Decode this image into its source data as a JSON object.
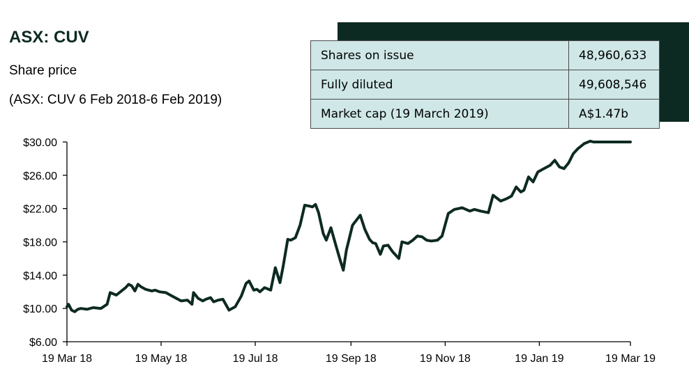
{
  "header": {
    "title": "ASX: CUV",
    "subtitle": "Share price",
    "date_range": "(ASX: CUV 6 Feb 2018-6 Feb 2019)"
  },
  "stats_table": {
    "rows": [
      {
        "label": "Shares on issue",
        "value": "48,960,633"
      },
      {
        "label": "Fully diluted",
        "value": "49,608,546"
      },
      {
        "label": "Market cap (19 March 2019)",
        "value": "A$1.47b"
      }
    ]
  },
  "colors": {
    "line": "#0d2a22",
    "dark_block": "#0d2a22",
    "table_background": "#cfe7e7"
  },
  "chart_data": {
    "type": "line",
    "title": "",
    "xlabel": "",
    "ylabel": "",
    "ylim": [
      6,
      30
    ],
    "yticks": [
      6,
      10,
      14,
      18,
      22,
      26,
      30
    ],
    "ytick_labels": [
      "$6.00",
      "$10.00",
      "$14.00",
      "$18.00",
      "$22.00",
      "$26.00",
      "$30.00"
    ],
    "xlim": [
      "2018-03-19",
      "2019-03-19"
    ],
    "xticks": [
      "2018-03-19",
      "2018-05-19",
      "2018-07-19",
      "2018-09-19",
      "2018-11-19",
      "2019-01-19",
      "2019-03-19"
    ],
    "xtick_labels": [
      "19 Mar 18",
      "19 May 18",
      "19 Jul 18",
      "19 Sep 18",
      "19 Nov 18",
      "19 Jan 19",
      "19 Mar 19"
    ],
    "grid": false,
    "legend": "none",
    "series": [
      {
        "x": [
          "2018-03-19",
          "2018-03-20",
          "2018-03-22",
          "2018-03-24",
          "2018-03-26",
          "2018-03-28",
          "2018-04-01",
          "2018-04-05",
          "2018-04-10",
          "2018-04-14",
          "2018-04-16",
          "2018-04-20",
          "2018-04-26",
          "2018-04-28",
          "2018-04-30",
          "2018-05-02",
          "2018-05-04",
          "2018-05-06",
          "2018-05-09",
          "2018-05-11",
          "2018-05-13",
          "2018-05-15",
          "2018-05-18",
          "2018-05-22",
          "2018-05-26",
          "2018-06-01",
          "2018-06-05",
          "2018-06-08",
          "2018-06-09",
          "2018-06-12",
          "2018-06-15",
          "2018-06-17",
          "2018-06-20",
          "2018-06-22",
          "2018-06-25",
          "2018-06-28",
          "2018-07-02",
          "2018-07-06",
          "2018-07-10",
          "2018-07-13",
          "2018-07-15",
          "2018-07-18",
          "2018-07-20",
          "2018-07-22",
          "2018-07-25",
          "2018-07-29",
          "2018-08-01",
          "2018-08-04",
          "2018-08-06",
          "2018-08-09",
          "2018-08-11",
          "2018-08-14",
          "2018-08-17",
          "2018-08-20",
          "2018-08-23",
          "2018-08-25",
          "2018-08-27",
          "2018-08-29",
          "2018-09-01",
          "2018-09-03",
          "2018-09-06",
          "2018-09-09",
          "2018-09-12",
          "2018-09-14",
          "2018-09-16",
          "2018-09-20",
          "2018-09-25",
          "2018-09-28",
          "2018-10-01",
          "2018-10-03",
          "2018-10-05",
          "2018-10-08",
          "2018-10-10",
          "2018-10-13",
          "2018-10-16",
          "2018-10-20",
          "2018-10-22",
          "2018-10-26",
          "2018-10-29",
          "2018-11-01",
          "2018-11-04",
          "2018-11-07",
          "2018-11-10",
          "2018-11-14",
          "2018-11-17",
          "2018-11-21",
          "2018-11-25",
          "2018-11-30",
          "2018-12-05",
          "2018-12-08",
          "2018-12-12",
          "2018-12-17",
          "2018-12-20",
          "2018-12-25",
          "2018-12-29",
          "2019-01-01",
          "2019-01-04",
          "2019-01-07",
          "2019-01-09",
          "2019-01-12",
          "2019-01-15",
          "2019-01-18",
          "2019-01-22",
          "2019-01-26",
          "2019-01-29",
          "2019-02-01",
          "2019-02-04",
          "2019-02-07",
          "2019-02-10",
          "2019-02-13",
          "2019-02-15",
          "2019-02-17",
          "2019-02-21",
          "2019-02-23",
          "2019-02-26",
          "2019-03-01",
          "2019-03-03",
          "2019-03-06",
          "2019-03-09",
          "2019-03-12",
          "2019-03-15",
          "2019-03-17",
          "2019-03-19"
        ],
        "values": [
          10.2,
          10.5,
          9.8,
          9.6,
          9.9,
          10.0,
          9.9,
          10.1,
          10.0,
          10.5,
          11.9,
          11.6,
          12.5,
          12.9,
          12.7,
          12.1,
          12.9,
          12.6,
          12.3,
          12.2,
          12.1,
          12.2,
          12.0,
          11.9,
          11.5,
          10.9,
          11.0,
          10.5,
          11.9,
          11.2,
          10.9,
          11.1,
          11.3,
          10.8,
          11.0,
          11.1,
          9.8,
          10.2,
          11.5,
          13.0,
          13.3,
          12.2,
          12.3,
          12.0,
          12.5,
          12.2,
          14.9,
          13.1,
          15.0,
          18.3,
          18.2,
          18.5,
          20.0,
          22.4,
          22.3,
          22.2,
          22.5,
          21.5,
          19.0,
          18.2,
          19.7,
          17.7,
          15.8,
          14.6,
          17.0,
          20.0,
          21.2,
          19.5,
          18.3,
          17.9,
          17.8,
          16.5,
          17.5,
          17.6,
          16.8,
          16.0,
          18.0,
          17.8,
          18.2,
          18.7,
          18.6,
          18.2,
          18.1,
          18.2,
          18.7,
          21.4,
          21.9,
          22.1,
          21.7,
          21.9,
          21.7,
          21.5,
          23.6,
          22.9,
          23.2,
          23.5,
          24.6,
          24.0,
          24.2,
          25.8,
          25.2,
          26.4,
          26.8,
          27.2,
          27.8,
          27.0,
          26.8,
          27.5,
          28.6,
          29.2,
          29.5,
          29.8,
          30.1,
          30.0,
          30.0,
          30.0,
          30.0,
          30.0,
          30.0,
          30.0,
          30.0,
          30.0,
          30.0
        ]
      }
    ]
  }
}
